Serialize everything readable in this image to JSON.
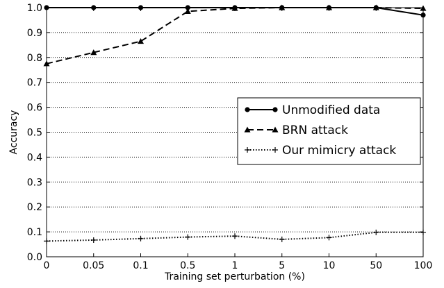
{
  "chart_data": {
    "type": "line",
    "title": "",
    "xlabel": "Training set perturbation (%)",
    "ylabel": "Accuracy",
    "categories": [
      "0",
      "0.05",
      "0.1",
      "0.5",
      "1",
      "5",
      "10",
      "50",
      "100"
    ],
    "ylim": [
      0.0,
      1.0
    ],
    "yticks": [
      "0.0",
      "0.1",
      "0.2",
      "0.3",
      "0.4",
      "0.5",
      "0.6",
      "0.7",
      "0.8",
      "0.9",
      "1.0"
    ],
    "grid": "horizontal dotted",
    "legend_position": "right-center",
    "series": [
      {
        "name": "Unmodified data",
        "style": "solid",
        "marker": "circle",
        "color": "#000000",
        "values": [
          1.0,
          1.0,
          1.0,
          1.0,
          1.0,
          1.0,
          1.0,
          1.0,
          0.97
        ]
      },
      {
        "name": "BRN attack",
        "style": "dashed",
        "marker": "triangle",
        "color": "#000000",
        "values": [
          0.775,
          0.82,
          0.865,
          0.985,
          0.997,
          1.0,
          1.0,
          1.0,
          0.997
        ]
      },
      {
        "name": "Our mimicry attack",
        "style": "dotted",
        "marker": "plus",
        "color": "#000000",
        "values": [
          0.063,
          0.067,
          0.073,
          0.079,
          0.083,
          0.07,
          0.077,
          0.098,
          0.098
        ]
      }
    ]
  }
}
